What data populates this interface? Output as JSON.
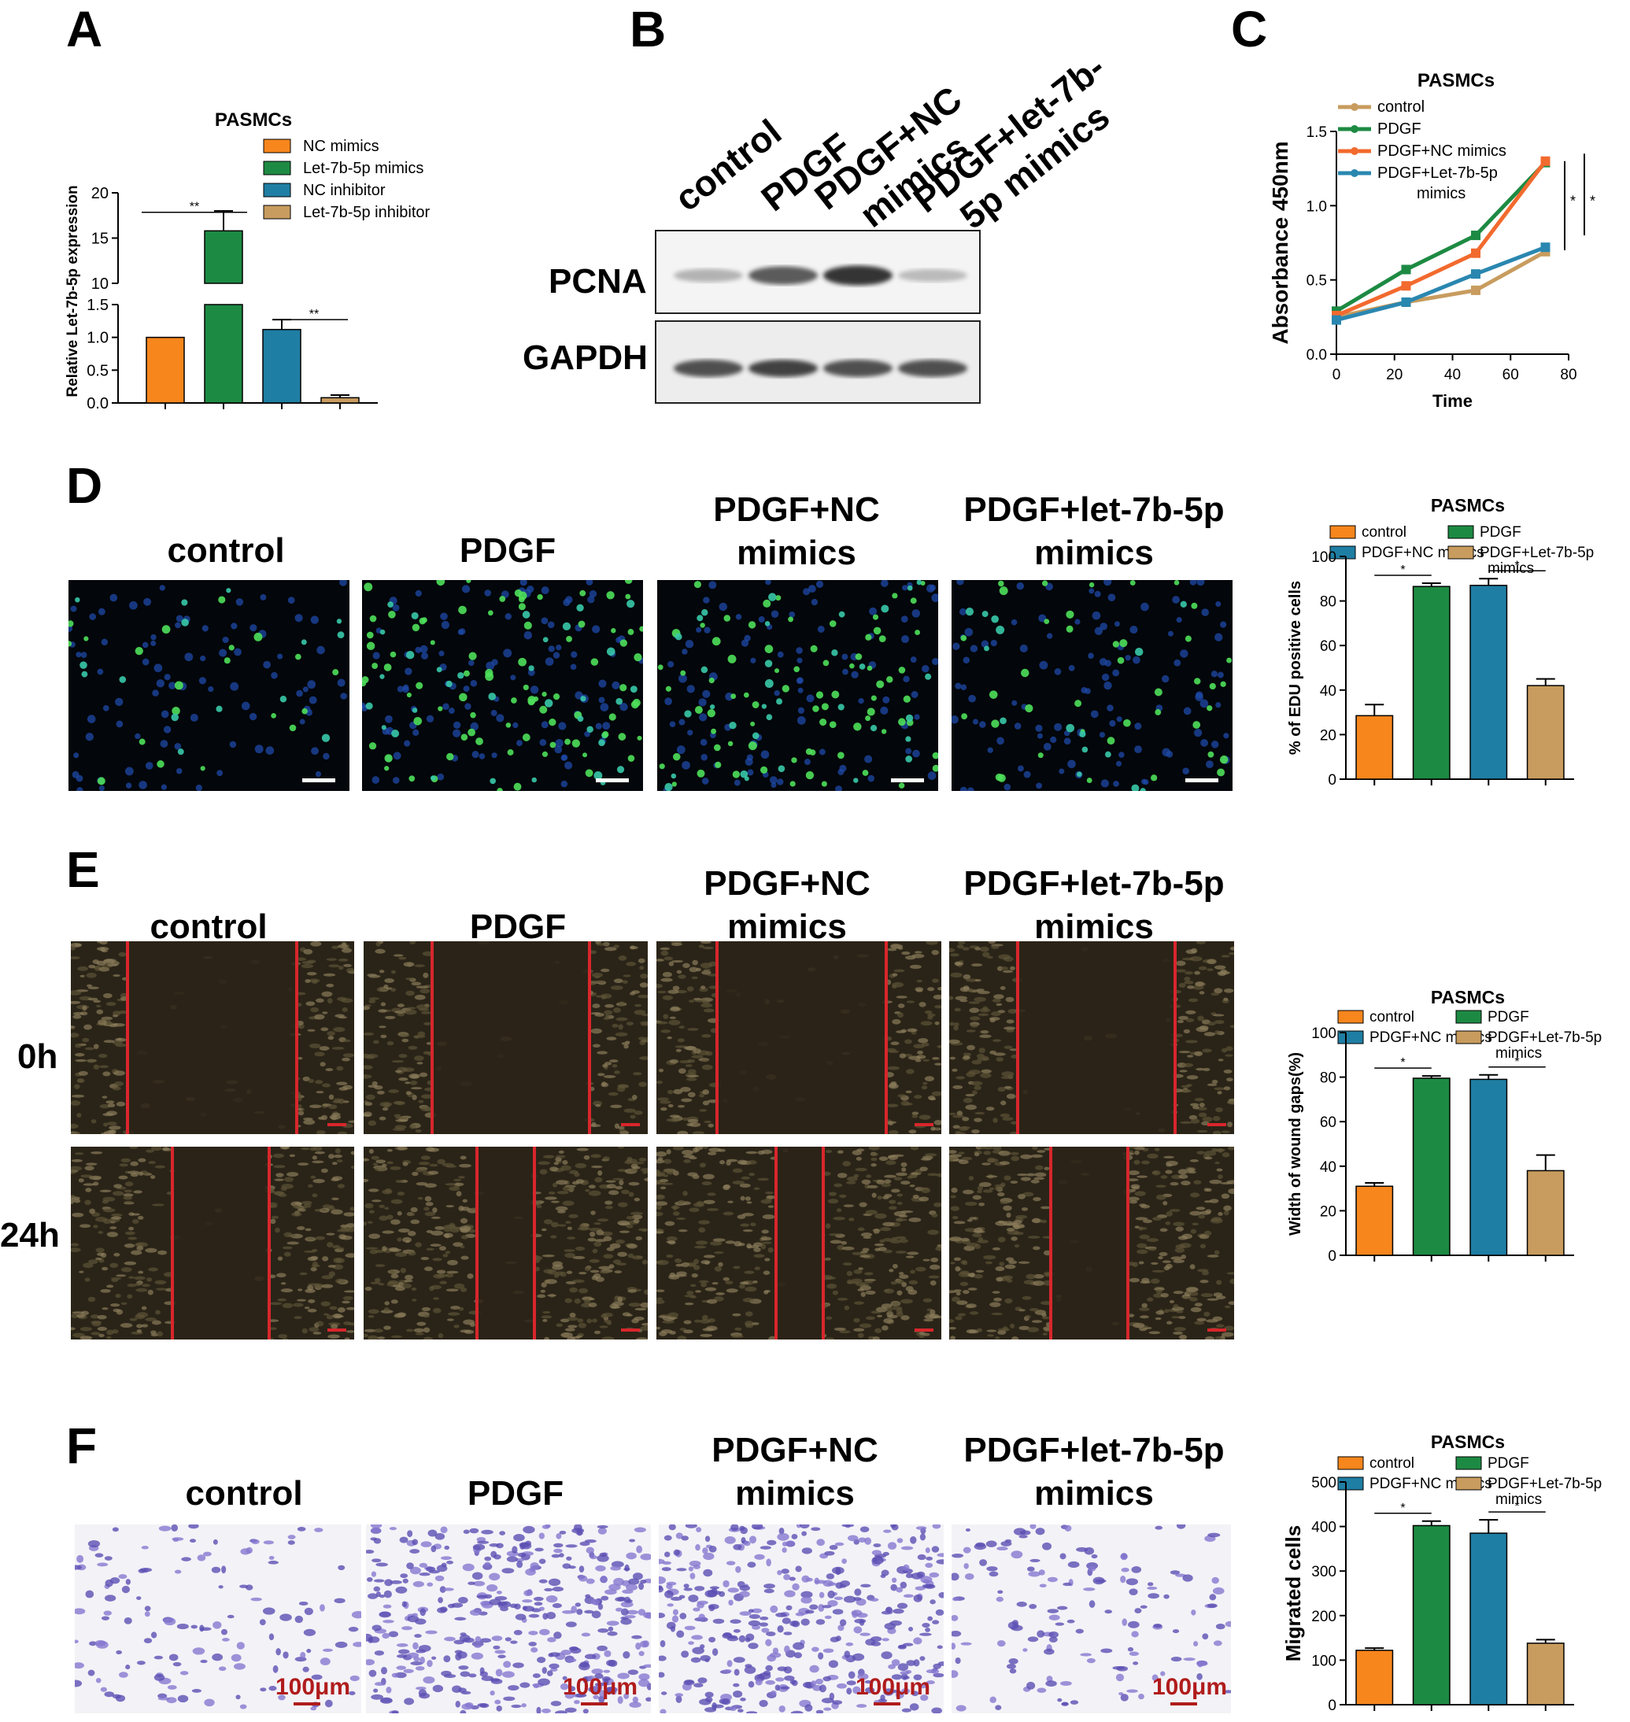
{
  "panels": {
    "A": {
      "letter": "A",
      "chart_data": {
        "type": "bar",
        "title": "PASMCs",
        "ylabel": "Relative Let-7b-5p expression",
        "categories": [
          "NC mimics",
          "Let-7b-5p mimics",
          "NC inhibitor",
          "Let-7b-5p inhibitor"
        ],
        "values": [
          1.0,
          15.8,
          1.12,
          0.08
        ],
        "errors": [
          0,
          2.2,
          0.15,
          0.04
        ],
        "colors": [
          "#f7861d",
          "#1d8a43",
          "#1f7ea3",
          "#c89c5e"
        ],
        "broken_axis": {
          "lower": [
            0,
            1.5
          ],
          "upper": [
            10,
            20
          ]
        },
        "yticks_lower": [
          "0.0",
          "0.5",
          "1.0",
          "1.5"
        ],
        "yticks_upper": [
          "10",
          "15",
          "20"
        ],
        "legend_position": "top-right",
        "annotations": [
          "**",
          "**"
        ]
      }
    },
    "B": {
      "letter": "B",
      "lanes": [
        "control",
        "PDGF",
        "PDGF+NC mimics",
        "PDGF+let-7b-5p mimics"
      ],
      "lane_labels": [
        "control",
        "PDGF",
        "PDGF+NC\nmimics",
        "PDGF+let-7b-5p\nmimics"
      ],
      "blots": [
        {
          "name": "PCNA",
          "intensities": [
            0.35,
            0.8,
            0.95,
            0.3
          ]
        },
        {
          "name": "GAPDH",
          "intensities": [
            0.85,
            0.9,
            0.85,
            0.85
          ]
        }
      ]
    },
    "C": {
      "letter": "C",
      "chart_data": {
        "type": "line",
        "title": "PASMCs",
        "xlabel": "Time",
        "ylabel": "Absorbance 450nm",
        "xlim": [
          0,
          80
        ],
        "ylim": [
          0,
          1.5
        ],
        "xticks": [
          "0",
          "20",
          "40",
          "60",
          "80"
        ],
        "yticks": [
          "0.0",
          "0.5",
          "1.0",
          "1.5"
        ],
        "x": [
          0,
          24,
          48,
          72
        ],
        "series": [
          {
            "name": "control",
            "color": "#c89c5e",
            "values": [
              0.25,
              0.35,
              0.43,
              0.69
            ]
          },
          {
            "name": "PDGF",
            "color": "#1d8a43",
            "values": [
              0.29,
              0.57,
              0.8,
              1.29
            ]
          },
          {
            "name": "PDGF+NC mimics",
            "color": "#f26a2e",
            "values": [
              0.26,
              0.46,
              0.68,
              1.3
            ]
          },
          {
            "name": "PDGF+Let-7b-5p mimics",
            "color": "#2a87b0",
            "values": [
              0.23,
              0.35,
              0.54,
              0.72
            ]
          }
        ],
        "legend_position": "top-left",
        "annotations": [
          "*",
          "*"
        ]
      }
    },
    "D": {
      "letter": "D",
      "columns": [
        "control",
        "PDGF",
        "PDGF+NC\nmimics",
        "PDGF+let-7b-5p\nmimics"
      ],
      "chart_data": {
        "type": "bar",
        "title": "PASMCs",
        "ylabel": "% of EDU positive cells",
        "ylim": [
          0,
          100
        ],
        "yticks": [
          "0",
          "20",
          "40",
          "60",
          "80",
          "100"
        ],
        "categories": [
          "control",
          "PDGF",
          "PDGF+NC mimics",
          "PDGF+Let-7b-5p mimics"
        ],
        "values": [
          28.5,
          86.5,
          87,
          42
        ],
        "errors": [
          5,
          1.5,
          3,
          3
        ],
        "colors": [
          "#f7861d",
          "#1d8a43",
          "#1f7ea3",
          "#c89c5e"
        ],
        "annotations": [
          "*",
          "*"
        ]
      }
    },
    "E": {
      "letter": "E",
      "columns": [
        "control",
        "PDGF",
        "PDGF+NC\nmimics",
        "PDGF+let-7b-5p\nmimics"
      ],
      "rows": [
        "0h",
        "24h"
      ],
      "chart_data": {
        "type": "bar",
        "title": "PASMCs",
        "ylabel": "Width of wound gaps(%)",
        "ylim": [
          0,
          100
        ],
        "yticks": [
          "0",
          "20",
          "40",
          "60",
          "80",
          "100"
        ],
        "categories": [
          "control",
          "PDGF",
          "PDGF+NC mimics",
          "PDGF+Let-7b-5p mimics"
        ],
        "values": [
          31,
          79.5,
          79,
          38
        ],
        "errors": [
          1.5,
          1,
          2,
          7
        ],
        "colors": [
          "#f7861d",
          "#1d8a43",
          "#1f7ea3",
          "#c89c5e"
        ],
        "annotations": [
          "*",
          "*"
        ]
      }
    },
    "F": {
      "letter": "F",
      "columns": [
        "control",
        "PDGF",
        "PDGF+NC\nmimics",
        "PDGF+let-7b-5p\nmimics"
      ],
      "scale_bar": "100μm",
      "chart_data": {
        "type": "bar",
        "title": "PASMCs",
        "ylabel": "Migrated cells",
        "ylim": [
          0,
          500
        ],
        "yticks": [
          "0",
          "100",
          "200",
          "300",
          "400",
          "500"
        ],
        "categories": [
          "control",
          "PDGF",
          "PDGF+NC mimics",
          "PDGF+Let-7b-5p mimics"
        ],
        "values": [
          122,
          402,
          385,
          138
        ],
        "errors": [
          5,
          10,
          30,
          8
        ],
        "colors": [
          "#f7861d",
          "#1d8a43",
          "#1f7ea3",
          "#c89c5e"
        ],
        "annotations": [
          "*",
          "*"
        ]
      }
    }
  }
}
